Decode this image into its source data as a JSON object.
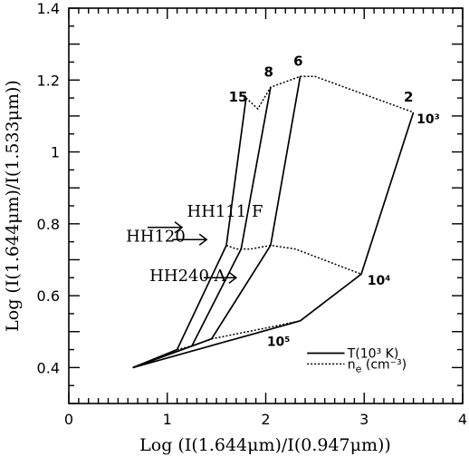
{
  "chart_data": {
    "type": "line",
    "xlabel": "Log  (I(1.644μm)/I(0.947μm))",
    "ylabel": "Log  (I(1.644μm)/I(1.533μm))",
    "xlim": [
      0,
      4
    ],
    "ylim": [
      0.3,
      1.4
    ],
    "x_ticks": [
      0,
      1,
      2,
      3,
      4
    ],
    "x_tick_labels": [
      "0",
      "1",
      "2",
      "3",
      "4"
    ],
    "y_ticks": [
      0.4,
      0.6,
      0.8,
      1.0,
      1.2,
      1.4
    ],
    "y_tick_labels": [
      "0.4",
      "0.6",
      "0.8",
      "1",
      "1.2",
      "1.4"
    ],
    "grid": false,
    "series": [
      {
        "name": "T(10³ K)",
        "style": "solid",
        "x": [
          0.65,
          1.1,
          1.6,
          1.8
        ],
        "y": [
          0.4,
          0.45,
          0.74,
          1.15
        ]
      },
      {
        "style": "solid",
        "x": [
          0.65,
          1.25,
          1.75,
          2.05
        ],
        "y": [
          0.4,
          0.46,
          0.73,
          1.18
        ]
      },
      {
        "style": "solid",
        "x": [
          0.65,
          1.45,
          2.05,
          2.35
        ],
        "y": [
          0.4,
          0.48,
          0.74,
          1.21
        ]
      },
      {
        "style": "solid",
        "x": [
          0.65,
          2.35,
          2.97,
          3.5
        ],
        "y": [
          0.4,
          0.53,
          0.66,
          1.11
        ]
      },
      {
        "name": "n_e (cm⁻³)",
        "style": "dotted",
        "x": [
          1.8,
          1.92,
          2.05,
          2.35,
          2.5,
          3.5
        ],
        "y": [
          1.15,
          1.12,
          1.18,
          1.21,
          1.21,
          1.11
        ]
      },
      {
        "style": "dotted",
        "x": [
          1.6,
          1.7,
          1.85,
          2.05,
          2.3,
          2.97
        ],
        "y": [
          0.74,
          0.73,
          0.73,
          0.74,
          0.73,
          0.66
        ]
      },
      {
        "style": "dotted",
        "x": [
          1.1,
          1.25,
          1.45,
          2.0,
          2.35
        ],
        "y": [
          0.45,
          0.46,
          0.48,
          0.51,
          0.53
        ]
      }
    ],
    "temperature_labels": [
      {
        "text": "15",
        "x": 1.72,
        "y": 1.14
      },
      {
        "text": "8",
        "x": 2.03,
        "y": 1.21
      },
      {
        "text": "6",
        "x": 2.33,
        "y": 1.24
      },
      {
        "text": "2",
        "x": 3.45,
        "y": 1.14
      }
    ],
    "density_labels": [
      {
        "text": "10³",
        "x": 3.65,
        "y": 1.08
      },
      {
        "text": "10⁴",
        "x": 3.15,
        "y": 0.63
      },
      {
        "text": "10⁵",
        "x": 2.13,
        "y": 0.46
      }
    ],
    "annotations": [
      {
        "text": "HH111 F",
        "x": 1.2,
        "y": 0.82,
        "arrow_from": [
          0.8,
          0.79
        ],
        "arrow_to": [
          1.15,
          0.79
        ]
      },
      {
        "text": "HH120",
        "x": 0.58,
        "y": 0.75,
        "arrow_from": [
          1.05,
          0.756
        ],
        "arrow_to": [
          1.4,
          0.756
        ]
      },
      {
        "text": "HH240 A",
        "x": 0.82,
        "y": 0.64,
        "arrow_from": [
          1.37,
          0.65
        ],
        "arrow_to": [
          1.7,
          0.65
        ]
      }
    ],
    "legend": {
      "position": "bottom-right",
      "entries": [
        {
          "label": "T(10³ K)",
          "style": "solid"
        },
        {
          "label": "n",
          "subscript": "e",
          "suffix": " (cm⁻³)",
          "style": "dotted"
        }
      ]
    }
  }
}
